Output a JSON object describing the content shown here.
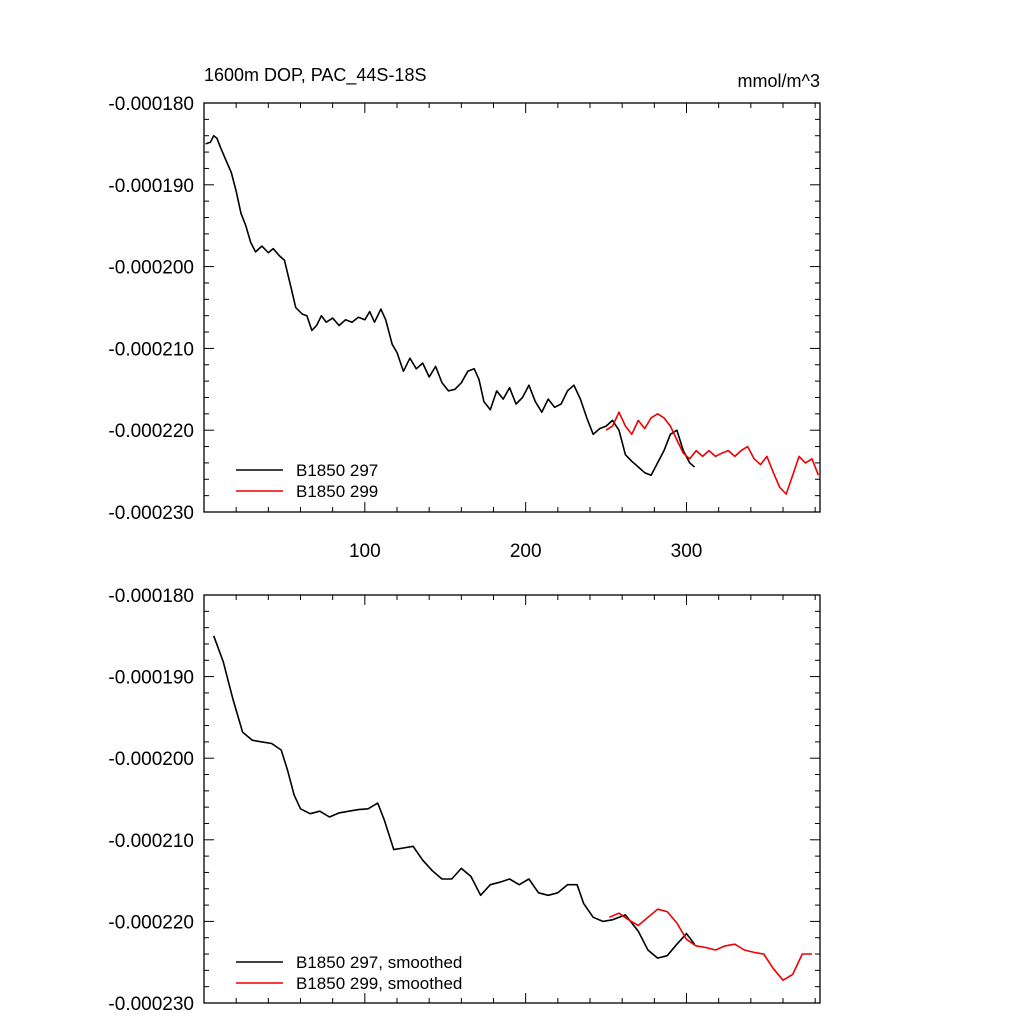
{
  "chart_data": [
    {
      "type": "line",
      "title": "1600m DOP, PAC_44S-18S",
      "units": "mmol/m^3",
      "xlim": [
        0,
        383
      ],
      "ylim": [
        -0.00023,
        -0.00018
      ],
      "xticks": [
        100,
        200,
        300
      ],
      "yticks": [
        -0.00018,
        -0.00019,
        -0.0002,
        -0.00021,
        -0.00022,
        -0.00023
      ],
      "ytick_labels": [
        "-0.000180",
        "-0.000190",
        "-0.000200",
        "-0.000210",
        "-0.000220",
        "-0.000230"
      ],
      "xtick_labels": [
        "100",
        "200",
        "300"
      ],
      "grid": false,
      "legend_position": "bottom-left",
      "series": [
        {
          "name": "B1850 297",
          "color": "#000000",
          "x": [
            1,
            4,
            6,
            8,
            10,
            13,
            17,
            20,
            23,
            26,
            29,
            32,
            36,
            40,
            43,
            47,
            50,
            54,
            57,
            61,
            64,
            67,
            70,
            73,
            76,
            80,
            84,
            88,
            92,
            96,
            100,
            103,
            106,
            110,
            113,
            117,
            120,
            124,
            128,
            132,
            136,
            140,
            144,
            148,
            152,
            156,
            160,
            164,
            168,
            171,
            174,
            178,
            182,
            186,
            190,
            194,
            198,
            202,
            206,
            210,
            214,
            218,
            222,
            226,
            230,
            234,
            238,
            242,
            246,
            250,
            254,
            258,
            262,
            266,
            270,
            274,
            278,
            282,
            286,
            290,
            294,
            298,
            302,
            305
          ],
          "y": [
            -0.000185,
            -0.0001848,
            -0.000184,
            -0.0001843,
            -0.0001853,
            -0.0001867,
            -0.0001885,
            -0.0001908,
            -0.0001935,
            -0.000195,
            -0.000197,
            -0.0001982,
            -0.0001975,
            -0.0001983,
            -0.0001978,
            -0.0001987,
            -0.0001992,
            -0.0002025,
            -0.000205,
            -0.0002058,
            -0.000206,
            -0.0002078,
            -0.0002072,
            -0.000206,
            -0.0002068,
            -0.0002063,
            -0.0002072,
            -0.0002065,
            -0.0002068,
            -0.0002062,
            -0.0002065,
            -0.0002055,
            -0.0002068,
            -0.0002052,
            -0.0002065,
            -0.0002095,
            -0.0002105,
            -0.0002128,
            -0.0002112,
            -0.0002125,
            -0.0002118,
            -0.0002135,
            -0.0002122,
            -0.0002142,
            -0.0002152,
            -0.000215,
            -0.0002142,
            -0.0002128,
            -0.0002125,
            -0.0002138,
            -0.0002165,
            -0.0002175,
            -0.0002152,
            -0.0002162,
            -0.0002148,
            -0.0002168,
            -0.000216,
            -0.0002145,
            -0.0002165,
            -0.0002178,
            -0.0002162,
            -0.0002172,
            -0.0002168,
            -0.0002152,
            -0.0002145,
            -0.0002162,
            -0.0002185,
            -0.0002205,
            -0.0002198,
            -0.0002195,
            -0.0002188,
            -0.00022,
            -0.000223,
            -0.0002238,
            -0.0002245,
            -0.0002252,
            -0.0002255,
            -0.000224,
            -0.0002225,
            -0.0002205,
            -0.00022,
            -0.0002225,
            -0.000224,
            -0.0002245
          ]
        },
        {
          "name": "B1850 299",
          "color": "#ee0000",
          "x": [
            250,
            254,
            258,
            262,
            266,
            270,
            274,
            278,
            282,
            286,
            290,
            294,
            298,
            302,
            306,
            310,
            314,
            318,
            322,
            326,
            330,
            334,
            338,
            342,
            346,
            350,
            354,
            358,
            362,
            366,
            370,
            374,
            378,
            382
          ],
          "y": [
            -0.00022,
            -0.0002195,
            -0.0002178,
            -0.0002195,
            -0.0002205,
            -0.0002188,
            -0.0002198,
            -0.0002185,
            -0.000218,
            -0.0002185,
            -0.0002195,
            -0.0002212,
            -0.0002228,
            -0.0002235,
            -0.0002225,
            -0.0002232,
            -0.0002225,
            -0.0002232,
            -0.0002228,
            -0.0002225,
            -0.0002232,
            -0.0002225,
            -0.000222,
            -0.0002235,
            -0.0002242,
            -0.0002232,
            -0.0002252,
            -0.000227,
            -0.0002278,
            -0.0002255,
            -0.0002232,
            -0.000224,
            -0.0002235,
            -0.0002255
          ]
        }
      ]
    },
    {
      "type": "line",
      "xlim": [
        0,
        383
      ],
      "ylim": [
        -0.00023,
        -0.00018
      ],
      "xticks": [
        100,
        200,
        300
      ],
      "yticks": [
        -0.00018,
        -0.00019,
        -0.0002,
        -0.00021,
        -0.00022,
        -0.00023
      ],
      "ytick_labels": [
        "-0.000180",
        "-0.000190",
        "-0.000200",
        "-0.000210",
        "-0.000220",
        "-0.000230"
      ],
      "grid": false,
      "legend_position": "bottom-left",
      "series": [
        {
          "name": "B1850 297, smoothed",
          "color": "#000000",
          "x": [
            6,
            12,
            18,
            24,
            30,
            36,
            42,
            48,
            52,
            56,
            60,
            66,
            72,
            78,
            84,
            90,
            96,
            102,
            108,
            112,
            118,
            124,
            130,
            136,
            142,
            148,
            154,
            160,
            166,
            172,
            178,
            184,
            190,
            196,
            202,
            208,
            214,
            220,
            226,
            232,
            236,
            242,
            248,
            254,
            262,
            270,
            276,
            282,
            288,
            294,
            300,
            305
          ],
          "y": [
            -0.000185,
            -0.0001882,
            -0.0001928,
            -0.0001968,
            -0.0001978,
            -0.000198,
            -0.0001982,
            -0.000199,
            -0.0002015,
            -0.0002045,
            -0.0002062,
            -0.0002068,
            -0.0002065,
            -0.0002072,
            -0.0002067,
            -0.0002065,
            -0.0002063,
            -0.0002062,
            -0.0002055,
            -0.0002075,
            -0.0002112,
            -0.000211,
            -0.0002108,
            -0.0002125,
            -0.0002138,
            -0.0002148,
            -0.0002148,
            -0.0002135,
            -0.0002145,
            -0.0002168,
            -0.0002155,
            -0.0002152,
            -0.0002148,
            -0.0002155,
            -0.0002148,
            -0.0002165,
            -0.0002168,
            -0.0002165,
            -0.0002155,
            -0.0002155,
            -0.0002178,
            -0.0002195,
            -0.00022,
            -0.0002198,
            -0.0002192,
            -0.0002212,
            -0.0002235,
            -0.0002245,
            -0.0002242,
            -0.0002228,
            -0.0002215,
            -0.0002228
          ]
        },
        {
          "name": "B1850 299, smoothed",
          "color": "#ee0000",
          "x": [
            252,
            258,
            264,
            270,
            276,
            282,
            288,
            294,
            300,
            306,
            312,
            318,
            324,
            330,
            336,
            342,
            348,
            354,
            360,
            366,
            372,
            378
          ],
          "y": [
            -0.0002195,
            -0.000219,
            -0.0002198,
            -0.0002205,
            -0.0002195,
            -0.0002185,
            -0.0002188,
            -0.0002202,
            -0.0002222,
            -0.000223,
            -0.0002232,
            -0.0002235,
            -0.000223,
            -0.0002228,
            -0.0002235,
            -0.0002238,
            -0.000224,
            -0.0002258,
            -0.0002272,
            -0.0002265,
            -0.000224,
            -0.000224
          ]
        }
      ]
    }
  ]
}
